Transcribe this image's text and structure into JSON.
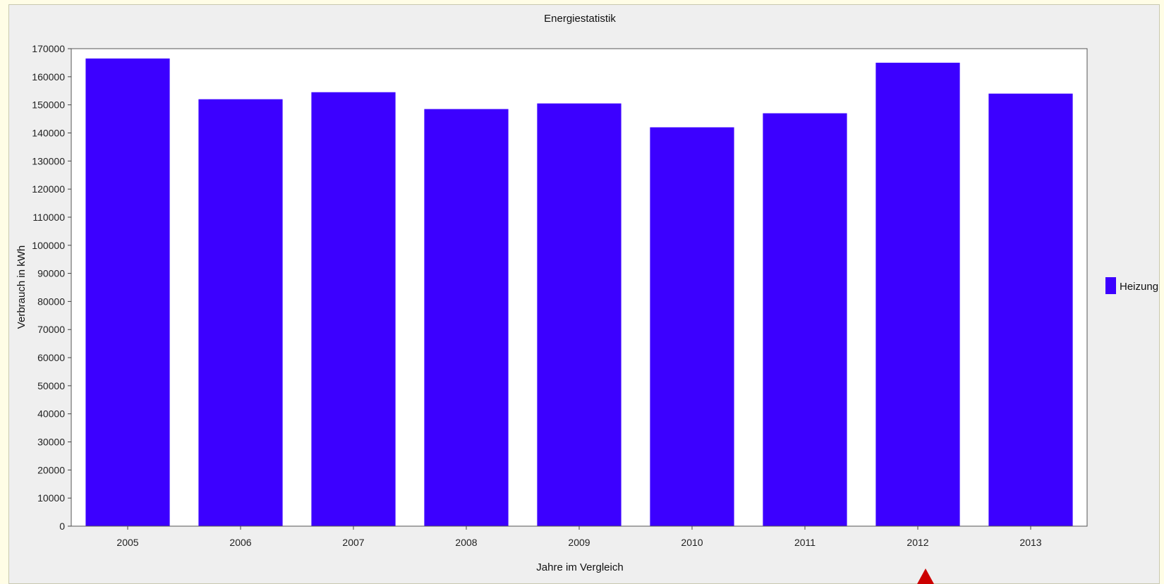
{
  "chart_data": {
    "type": "bar",
    "title": "Energiestatistik",
    "xlabel": "Jahre im Vergleich",
    "ylabel": "Verbrauch in kWh",
    "categories": [
      "2005",
      "2006",
      "2007",
      "2008",
      "2009",
      "2010",
      "2011",
      "2012",
      "2013"
    ],
    "series": [
      {
        "name": "Heizung",
        "color": "#3c00ff",
        "values": [
          166500,
          152000,
          154500,
          148500,
          150500,
          142000,
          147000,
          165000,
          154000
        ]
      }
    ],
    "ylim": [
      0,
      170000
    ],
    "yticks": [
      0,
      10000,
      20000,
      30000,
      40000,
      50000,
      60000,
      70000,
      80000,
      90000,
      100000,
      110000,
      120000,
      130000,
      140000,
      150000,
      160000,
      170000
    ],
    "grid": false,
    "legend_position": "right"
  },
  "colors": {
    "page_background": "#fffde6",
    "panel_background": "#efefef",
    "plot_background": "#ffffff",
    "marker": "#cc0000"
  }
}
